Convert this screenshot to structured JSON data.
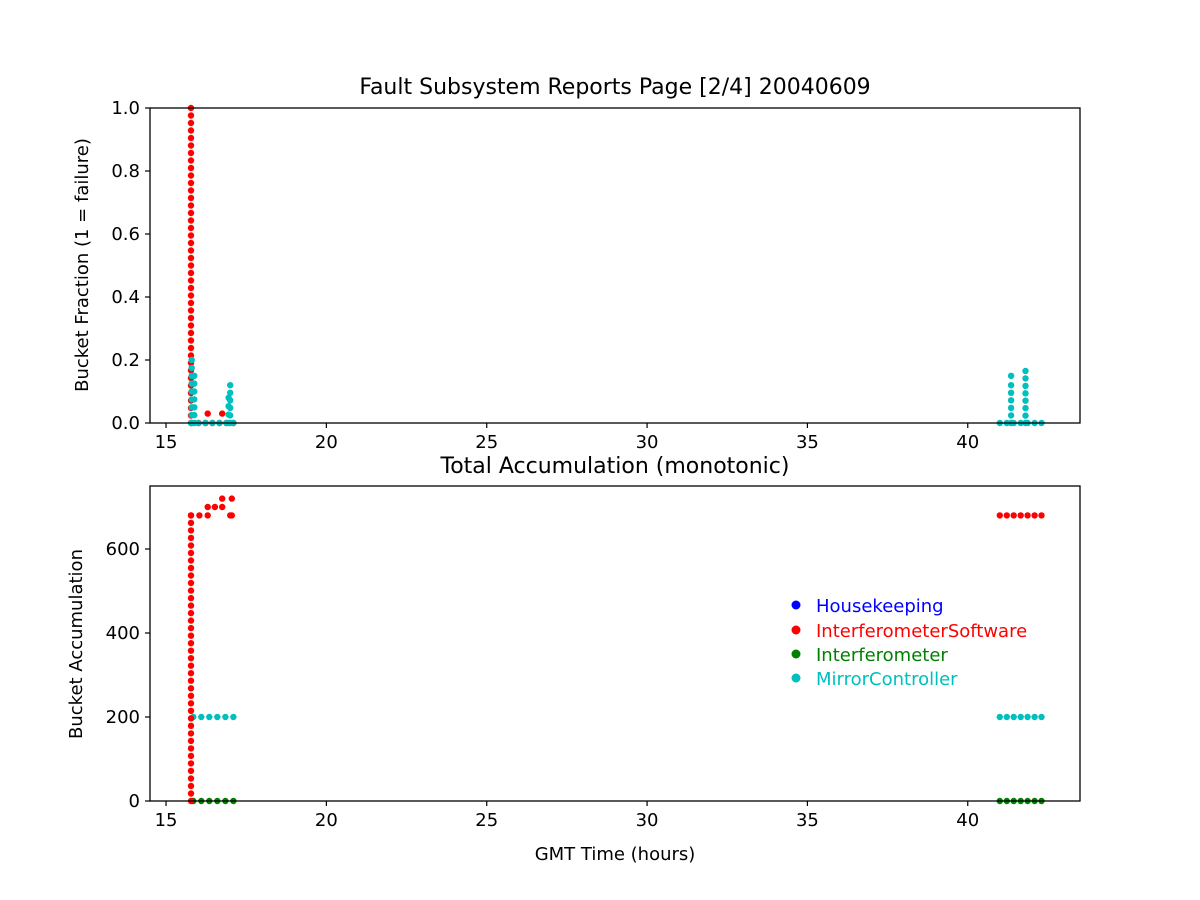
{
  "chart_data": [
    {
      "type": "scatter",
      "title": "Fault Subsystem Reports Page [2/4] 20040609",
      "xlabel": "",
      "ylabel": "Bucket Fraction (1 = failure)",
      "xlim": [
        14.5,
        43.5
      ],
      "ylim": [
        0,
        1.0
      ],
      "xticks": [
        15,
        20,
        25,
        30,
        35,
        40
      ],
      "yticks": [
        0.0,
        0.2,
        0.4,
        0.6,
        0.8,
        1.0
      ],
      "xtick_labels": [
        "15",
        "20",
        "25",
        "30",
        "35",
        "40"
      ],
      "ytick_labels": [
        "0.0",
        "0.2",
        "0.4",
        "0.6",
        "0.8",
        "1.0"
      ],
      "grid": false,
      "series": [
        {
          "name": "InterferometerSoftware",
          "color": "#ff0000",
          "segments": [
            {
              "x": 15.78,
              "y_from": 0.0,
              "y_to": 1.0
            },
            {
              "x_from": 15.8,
              "x_to": 17.1,
              "y": 0.0
            }
          ],
          "points": [
            [
              16.3,
              0.03
            ],
            [
              16.75,
              0.03
            ]
          ]
        },
        {
          "name": "MirrorController",
          "color": "#00bfbf",
          "segments": [
            {
              "x": 15.8,
              "y_from": 0.0,
              "y_to": 0.2
            },
            {
              "x": 15.88,
              "y_from": 0.0,
              "y_to": 0.15
            },
            {
              "x": 16.95,
              "y_from": 0.0,
              "y_to": 0.08
            },
            {
              "x": 17.0,
              "y_from": 0.0,
              "y_to": 0.12
            },
            {
              "x": 41.35,
              "y_from": 0.0,
              "y_to": 0.12
            },
            {
              "x": 41.8,
              "y_from": 0.0,
              "y_to": 0.165
            },
            {
              "x_from": 15.78,
              "x_to": 17.1,
              "y": 0.0
            },
            {
              "x_from": 41.0,
              "x_to": 42.3,
              "y": 0.0
            }
          ],
          "points": [
            [
              41.35,
              0.15
            ]
          ]
        }
      ]
    },
    {
      "type": "scatter",
      "title": "Total Accumulation (monotonic)",
      "xlabel": "GMT Time (hours)",
      "ylabel": "Bucket Accumulation",
      "xlim": [
        14.5,
        43.5
      ],
      "ylim": [
        0,
        750
      ],
      "xticks": [
        15,
        20,
        25,
        30,
        35,
        40
      ],
      "yticks": [
        0,
        200,
        400,
        600
      ],
      "xtick_labels": [
        "15",
        "20",
        "25",
        "30",
        "35",
        "40"
      ],
      "ytick_labels": [
        "0",
        "200",
        "400",
        "600"
      ],
      "grid": false,
      "legend_position": "center-right",
      "legend": [
        {
          "label": "Housekeeping",
          "color": "#0000ff"
        },
        {
          "label": "InterferometerSoftware",
          "color": "#ff0000"
        },
        {
          "label": "Interferometer",
          "color": "#008000"
        },
        {
          "label": "MirrorController",
          "color": "#00bfbf"
        }
      ],
      "series": [
        {
          "name": "Interferometer",
          "color": "#008000",
          "segments": [
            {
              "x_from": 15.85,
              "x_to": 17.1,
              "y": 0
            },
            {
              "x_from": 41.0,
              "x_to": 42.3,
              "y": 0
            }
          ]
        },
        {
          "name": "MirrorController",
          "color": "#00bfbf",
          "segments": [
            {
              "x_from": 15.85,
              "x_to": 17.1,
              "y": 200
            },
            {
              "x_from": 41.0,
              "x_to": 42.3,
              "y": 200
            }
          ]
        },
        {
          "name": "InterferometerSoftware",
          "color": "#ff0000",
          "segments": [
            {
              "x": 15.78,
              "y_from": 0,
              "y_to": 680
            },
            {
              "x_from": 15.78,
              "x_to": 16.3,
              "y": 680
            },
            {
              "x_from": 16.3,
              "x_to": 16.75,
              "y": 700
            },
            {
              "x_from": 16.75,
              "x_to": 17.05,
              "y": 720
            },
            {
              "x_from": 41.0,
              "x_to": 42.3,
              "y": 680
            }
          ],
          "points": [
            [
              17.0,
              680
            ],
            [
              17.05,
              680
            ]
          ]
        }
      ]
    }
  ]
}
